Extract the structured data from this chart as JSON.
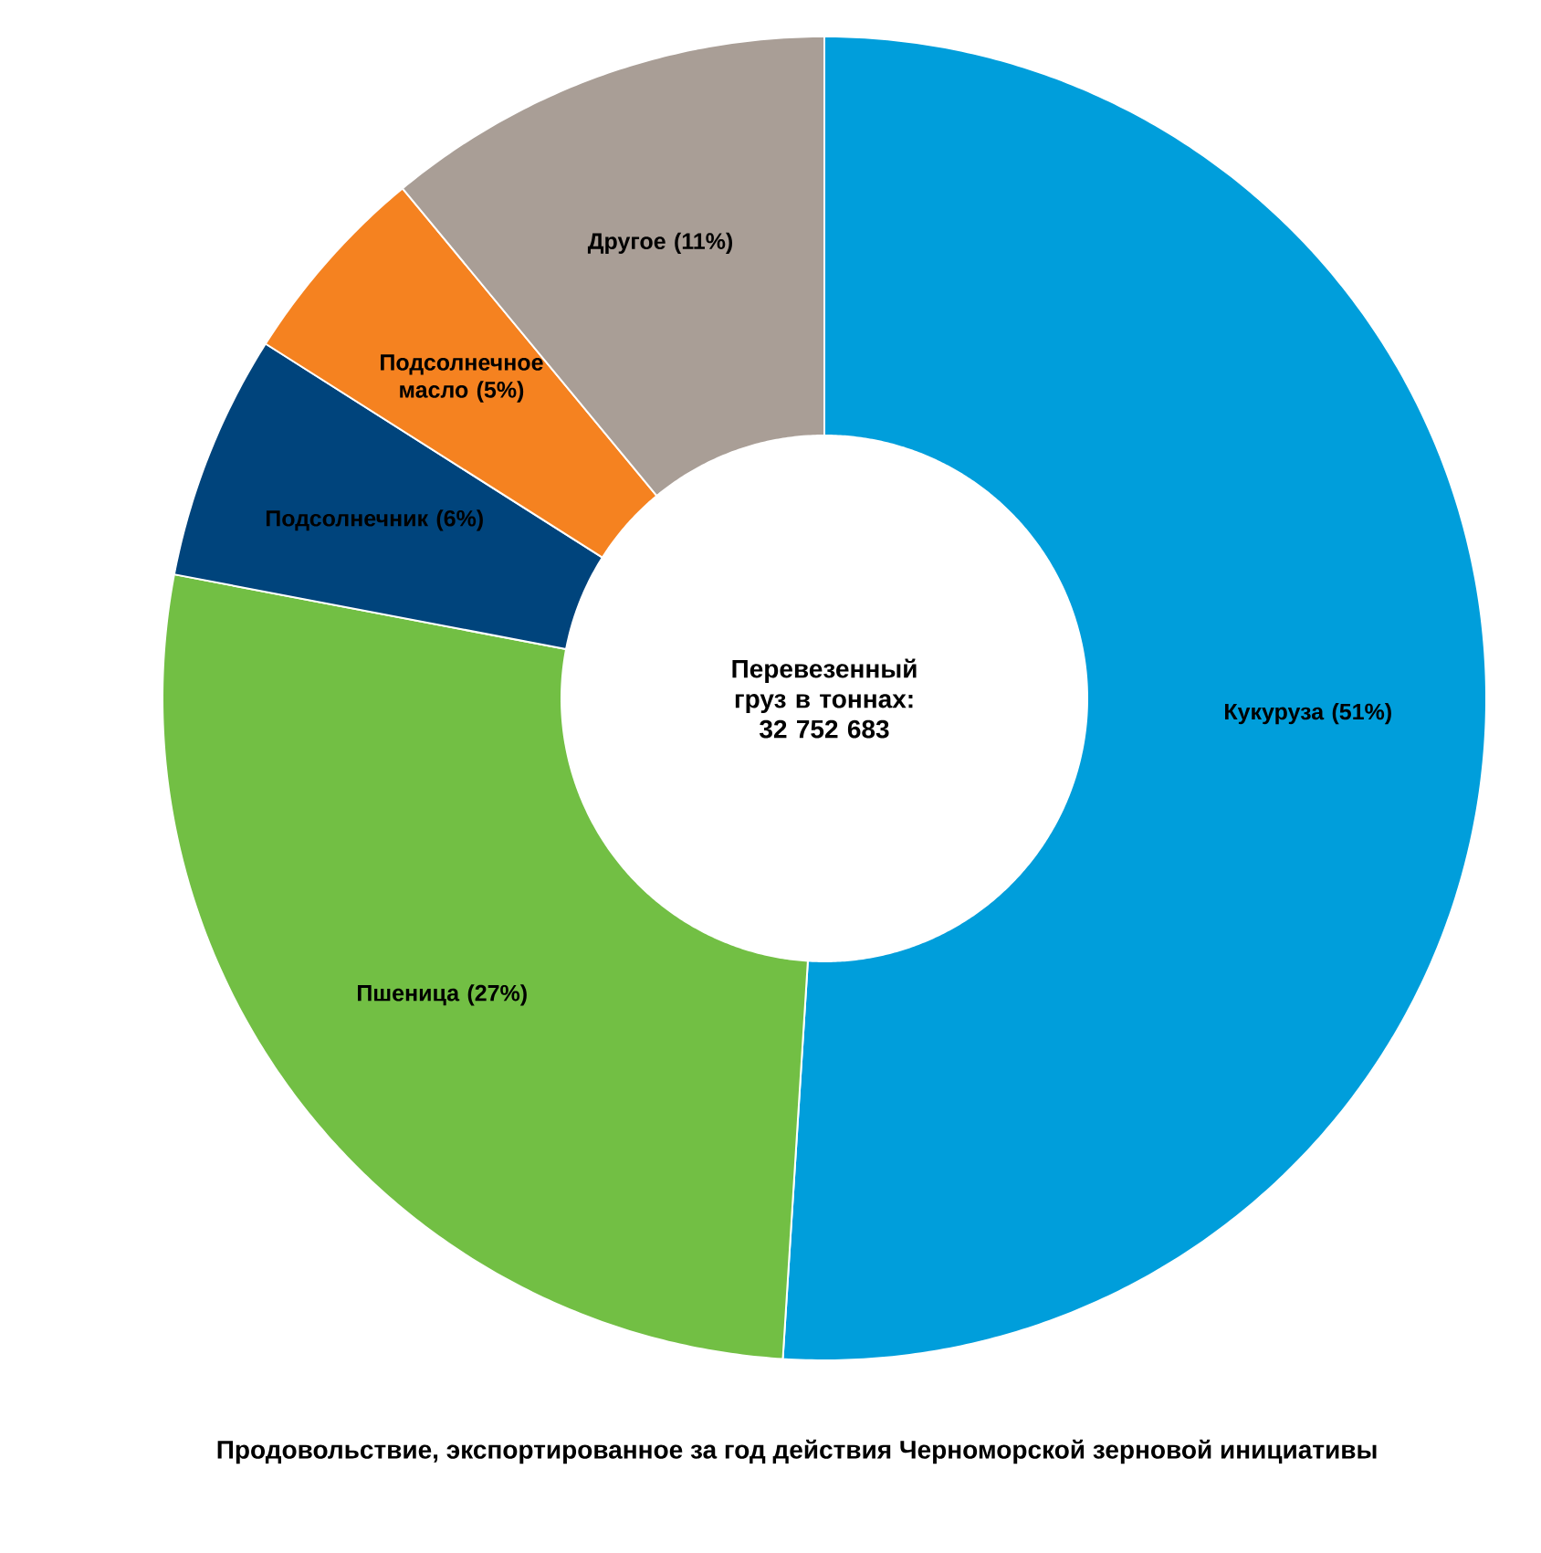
{
  "chart_data": {
    "type": "donut",
    "categories": [
      "Кукуруза",
      "Пшеница",
      "Подсолнечник",
      "Подсолнечное масло",
      "Другое"
    ],
    "values": [
      51,
      27,
      6,
      5,
      11
    ],
    "value_labels": [
      "(51%)",
      "(27%)",
      "(6%)",
      "(5%)",
      "(11%)"
    ],
    "colors": [
      "#009edb",
      "#72bf44",
      "#00447c",
      "#f58220",
      "#a99e96"
    ],
    "annotations": [
      "Перевезенный груз в тоннах: 32 752 683",
      "Продовольствие, экспортированное за год действия Черноморской зерновой инициативы"
    ]
  }
}
